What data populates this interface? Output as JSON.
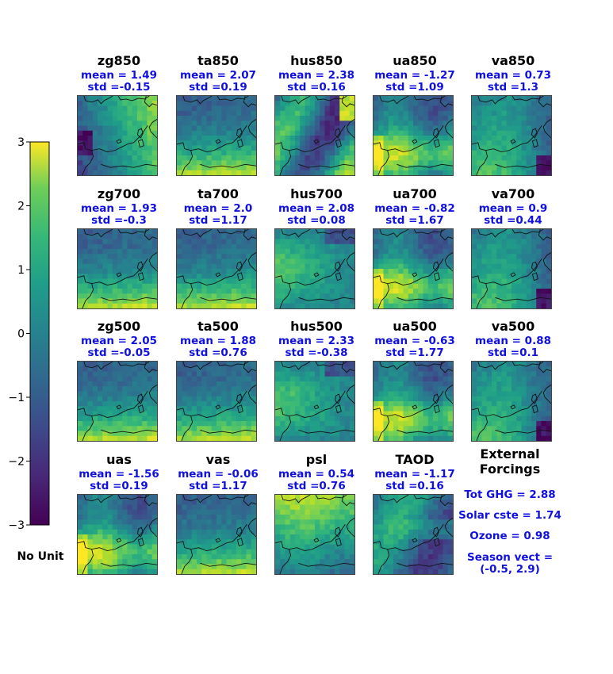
{
  "colorbar": {
    "ticks": [
      "3",
      "2",
      "1",
      "0",
      "−1",
      "−2",
      "−3"
    ],
    "colormap": [
      "#440154",
      "#3b528b",
      "#21918c",
      "#5ec962",
      "#fde725"
    ],
    "unit_label": "No Unit"
  },
  "chart_data": {
    "type": "heatmap",
    "value_range": [
      -3,
      3
    ],
    "colormap": "viridis",
    "panels": [
      {
        "title": "zg850",
        "mean": "mean = 1.49",
        "std": "std =-0.15",
        "mean_value": 1.49,
        "std_value": -0.15,
        "pattern": "west_low",
        "seed": 1
      },
      {
        "title": "ta850",
        "mean": "mean = 2.07",
        "std": "std =0.19",
        "mean_value": 2.07,
        "std_value": 0.19,
        "pattern": "south_high",
        "seed": 2
      },
      {
        "title": "hus850",
        "mean": "mean = 2.38",
        "std": "std =0.16",
        "mean_value": 2.38,
        "std_value": 0.16,
        "pattern": "mixed_east",
        "seed": 3
      },
      {
        "title": "ua850",
        "mean": "mean = -1.27",
        "std": "std =1.09",
        "mean_value": -1.27,
        "std_value": 1.09,
        "pattern": "center_band",
        "seed": 4
      },
      {
        "title": "va850",
        "mean": "mean = 0.73",
        "std": "std =1.3",
        "mean_value": 0.73,
        "std_value": 1.3,
        "pattern": "sw_high",
        "seed": 5
      },
      {
        "title": "zg700",
        "mean": "mean = 1.93",
        "std": "std =-0.3",
        "mean_value": 1.93,
        "std_value": -0.3,
        "pattern": "south_high",
        "seed": 6
      },
      {
        "title": "ta700",
        "mean": "mean = 2.0",
        "std": "std =1.17",
        "mean_value": 2.0,
        "std_value": 1.17,
        "pattern": "south_high",
        "seed": 7
      },
      {
        "title": "hus700",
        "mean": "mean = 2.08",
        "std": "std =0.08",
        "mean_value": 2.08,
        "std_value": 0.08,
        "pattern": "west_high",
        "seed": 8
      },
      {
        "title": "ua700",
        "mean": "mean = -0.82",
        "std": "std =1.67",
        "mean_value": -0.82,
        "std_value": 1.67,
        "pattern": "center_band",
        "seed": 9
      },
      {
        "title": "va700",
        "mean": "mean = 0.9",
        "std": "std =0.44",
        "mean_value": 0.9,
        "std_value": 0.44,
        "pattern": "sw_high",
        "seed": 10
      },
      {
        "title": "zg500",
        "mean": "mean = 2.05",
        "std": "std =-0.05",
        "mean_value": 2.05,
        "std_value": -0.05,
        "pattern": "south_high",
        "seed": 11
      },
      {
        "title": "ta500",
        "mean": "mean = 1.88",
        "std": "std =0.76",
        "mean_value": 1.88,
        "std_value": 0.76,
        "pattern": "south_high",
        "seed": 12
      },
      {
        "title": "hus500",
        "mean": "mean = 2.33",
        "std": "std =-0.38",
        "mean_value": 2.33,
        "std_value": -0.38,
        "pattern": "west_high",
        "seed": 13
      },
      {
        "title": "ua500",
        "mean": "mean = -0.63",
        "std": "std =1.77",
        "mean_value": -0.63,
        "std_value": 1.77,
        "pattern": "center_band",
        "seed": 14
      },
      {
        "title": "va500",
        "mean": "mean = 0.88",
        "std": "std =0.1",
        "mean_value": 0.88,
        "std_value": 0.1,
        "pattern": "sw_high",
        "seed": 15
      },
      {
        "title": "uas",
        "mean": "mean = -1.56",
        "std": "std =0.19",
        "mean_value": -1.56,
        "std_value": 0.19,
        "pattern": "center_band",
        "seed": 16
      },
      {
        "title": "vas",
        "mean": "mean = -0.06",
        "std": "std =1.17",
        "mean_value": -0.06,
        "std_value": 1.17,
        "pattern": "south_high",
        "seed": 17
      },
      {
        "title": "psl",
        "mean": "mean = 0.54",
        "std": "std =0.76",
        "mean_value": 0.54,
        "std_value": 0.76,
        "pattern": "north_high",
        "seed": 18
      },
      {
        "title": "TAOD",
        "mean": "mean = -1.17",
        "std": "std =0.16",
        "mean_value": -1.17,
        "std_value": 0.16,
        "pattern": "east_high",
        "seed": 19
      }
    ],
    "external_forcings": {
      "title_line1": "External",
      "title_line2": "Forcings",
      "tot_ghg": "Tot GHG = 2.88",
      "solar": "Solar cste = 1.74",
      "ozone": "Ozone = 0.98",
      "season_line1": "Season vect  =",
      "season_line2": "(-0.5, 2.9)"
    }
  }
}
